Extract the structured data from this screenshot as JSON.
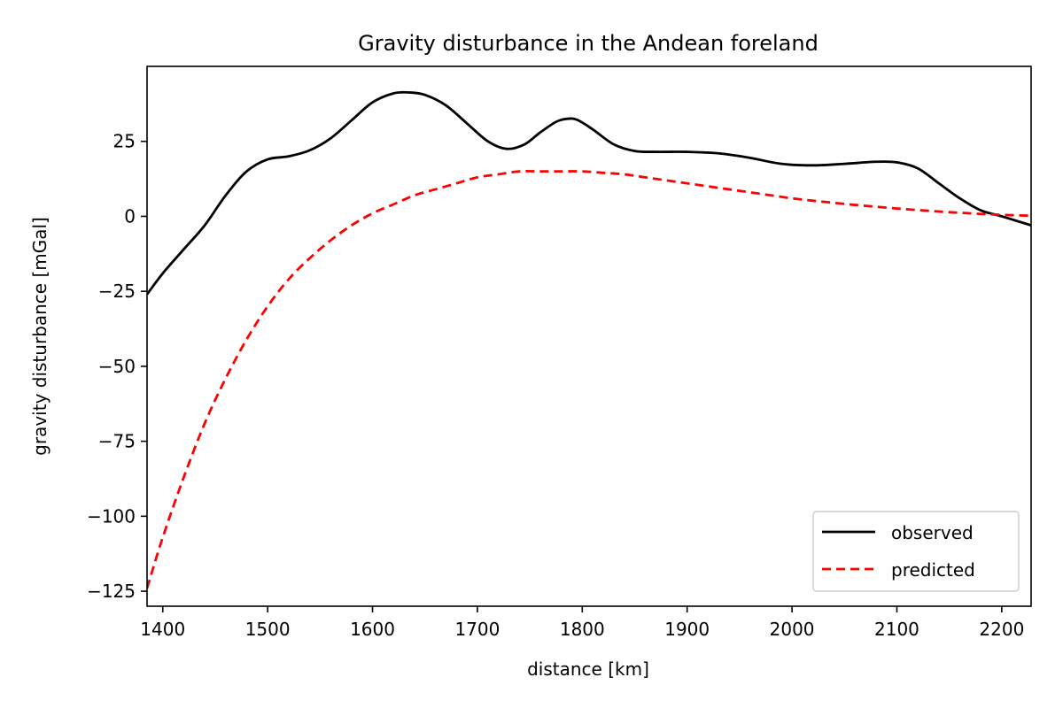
{
  "chart_data": {
    "type": "line",
    "title": "Gravity disturbance in the Andean foreland",
    "xlabel": "distance [km]",
    "ylabel": "gravity disturbance [mGal]",
    "xlim": [
      1385,
      2228
    ],
    "ylim": [
      -130,
      50
    ],
    "xticks": [
      1400,
      1500,
      1600,
      1700,
      1800,
      1900,
      2000,
      2100,
      2200
    ],
    "yticks": [
      -125,
      -100,
      -75,
      -50,
      -25,
      0,
      25
    ],
    "ytick_labels": [
      "−125",
      "−100",
      "−75",
      "−50",
      "−25",
      "0",
      "25"
    ],
    "grid": false,
    "legend_position": "lower-right",
    "series": [
      {
        "name": "observed",
        "color": "#000000",
        "style": "solid",
        "x": [
          1385,
          1400,
          1420,
          1440,
          1460,
          1480,
          1500,
          1520,
          1540,
          1560,
          1580,
          1600,
          1620,
          1635,
          1650,
          1670,
          1690,
          1710,
          1728,
          1745,
          1760,
          1775,
          1785,
          1795,
          1810,
          1830,
          1850,
          1870,
          1900,
          1930,
          1960,
          1990,
          2020,
          2050,
          2080,
          2100,
          2120,
          2140,
          2160,
          2180,
          2200,
          2228
        ],
        "y": [
          -26,
          -19,
          -11,
          -3,
          7,
          15,
          19,
          20,
          22,
          26,
          32,
          38,
          41,
          41.3,
          40.5,
          37,
          31,
          25,
          22.5,
          24,
          28,
          31.5,
          32.5,
          32.2,
          29,
          24,
          21.8,
          21.5,
          21.5,
          21,
          19.5,
          17.5,
          17,
          17.5,
          18.2,
          18,
          16,
          11,
          6,
          2,
          0,
          -3
        ]
      },
      {
        "name": "predicted",
        "color": "#ff0000",
        "style": "dashed",
        "x": [
          1385,
          1400,
          1420,
          1440,
          1460,
          1480,
          1500,
          1520,
          1540,
          1560,
          1580,
          1600,
          1620,
          1640,
          1660,
          1680,
          1700,
          1720,
          1740,
          1760,
          1780,
          1800,
          1820,
          1840,
          1860,
          1880,
          1900,
          1920,
          1940,
          1960,
          1980,
          2000,
          2020,
          2040,
          2060,
          2080,
          2100,
          2120,
          2140,
          2160,
          2180,
          2200,
          2228
        ],
        "y": [
          -124,
          -107,
          -87,
          -69,
          -54,
          -41,
          -30,
          -21,
          -14,
          -8,
          -3,
          1,
          4,
          7,
          9,
          11,
          13,
          14,
          15,
          15,
          15,
          15,
          14.5,
          14,
          13,
          12,
          11,
          10,
          9,
          8,
          7,
          6,
          5.2,
          4.5,
          3.8,
          3.2,
          2.6,
          2.1,
          1.6,
          1.2,
          0.8,
          0.5,
          0.2
        ]
      }
    ]
  }
}
